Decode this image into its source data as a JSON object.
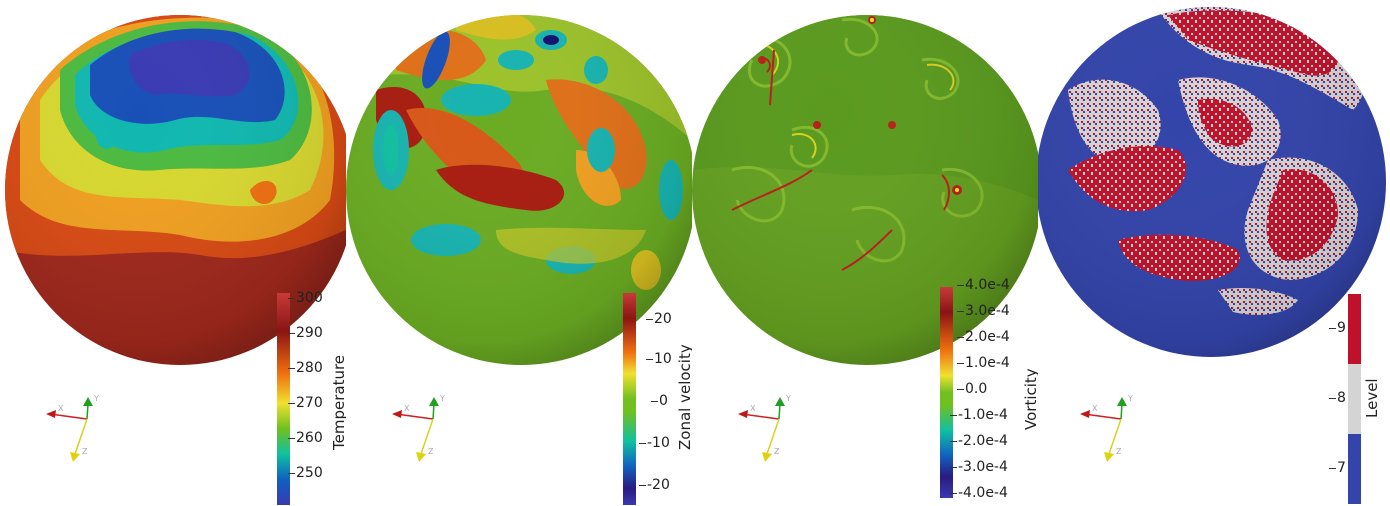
{
  "panels": [
    {
      "field": "temperature",
      "colorbar": {
        "title": "Temperature",
        "ticks": [
          "300",
          "290",
          "280",
          "270",
          "260",
          "250"
        ],
        "colors": [
          "#c83a3a",
          "#8b1414",
          "#f07010",
          "#f0e030",
          "#70c020",
          "#10c0a0",
          "#1060c0",
          "#3a3ab0"
        ]
      }
    },
    {
      "field": "zonal-velocity",
      "colorbar": {
        "title": "Zonal velocity",
        "ticks": [
          "20",
          "10",
          "0",
          "-10",
          "-20"
        ],
        "colors": [
          "#c83a3a",
          "#8b1414",
          "#f07010",
          "#f0e030",
          "#70c020",
          "#10c0a0",
          "#1060c0",
          "#2a1a80",
          "#3a3ab0"
        ]
      }
    },
    {
      "field": "vorticity",
      "colorbar": {
        "title": "Vorticity",
        "ticks": [
          "4.0e-4",
          "3.0e-4",
          "2.0e-4",
          "1.0e-4",
          "0.0",
          "-1.0e-4",
          "-2.0e-4",
          "-3.0e-4",
          "-4.0e-4"
        ],
        "colors": [
          "#c83a3a",
          "#8b1414",
          "#f07010",
          "#f0e030",
          "#70c020",
          "#10c0a0",
          "#1060c0",
          "#2a1a80",
          "#3a3ab0"
        ]
      }
    },
    {
      "field": "level",
      "colorbar": {
        "title": "Level",
        "ticks": [
          "9",
          "8",
          "7"
        ],
        "colors": [
          "#c0102a",
          "#d4d4d4",
          "#3344aa"
        ]
      }
    }
  ],
  "axes_labels": {
    "x": "X",
    "y": "Y",
    "z": "Z"
  }
}
